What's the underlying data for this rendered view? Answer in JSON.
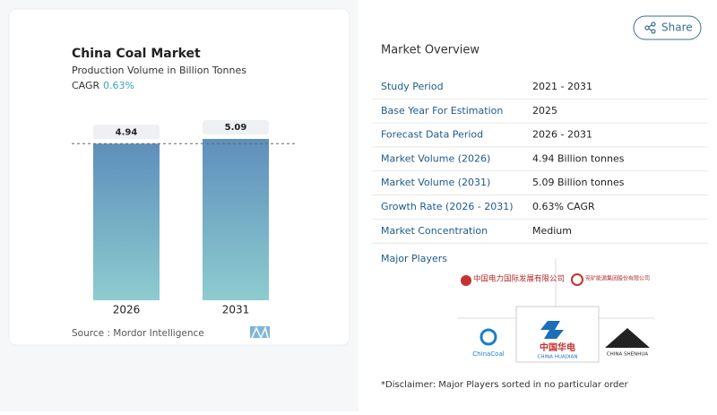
{
  "chart_data": {
    "type": "bar",
    "title": "China Coal Market",
    "subtitle": "Production Volume in Billion Tonnes",
    "cagr_label": "CAGR",
    "cagr_value": "0.63%",
    "categories": [
      "2026",
      "2031"
    ],
    "values": [
      4.94,
      5.09
    ],
    "source": "Source :  Mordor Intelligence"
  },
  "share": "Share",
  "overview": {
    "title": "Market Overview",
    "rows": [
      [
        "Study Period",
        "2021 - 2031"
      ],
      [
        "Base Year For Estimation",
        "2025"
      ],
      [
        "Forecast Data Period",
        "2026 - 2031"
      ],
      [
        "Market Volume (2026)",
        "4.94 Billion tonnes"
      ],
      [
        "Market Volume (2031)",
        "5.09 Billion tonnes"
      ],
      [
        "Growth Rate (2026 - 2031)",
        "0.63% CAGR"
      ],
      [
        "Market Concentration",
        "Medium"
      ]
    ]
  },
  "players": {
    "title": "Major Players",
    "logos": [
      "中国电力国际发展有限公司",
      "兖矿能源集团股份有限公司",
      "ChinaCoal",
      "中国华电",
      "CHINA HUADIAN",
      "CHINA SHENHUA"
    ]
  },
  "disclaimer": "*Disclaimer: Major Players sorted in no particular order"
}
